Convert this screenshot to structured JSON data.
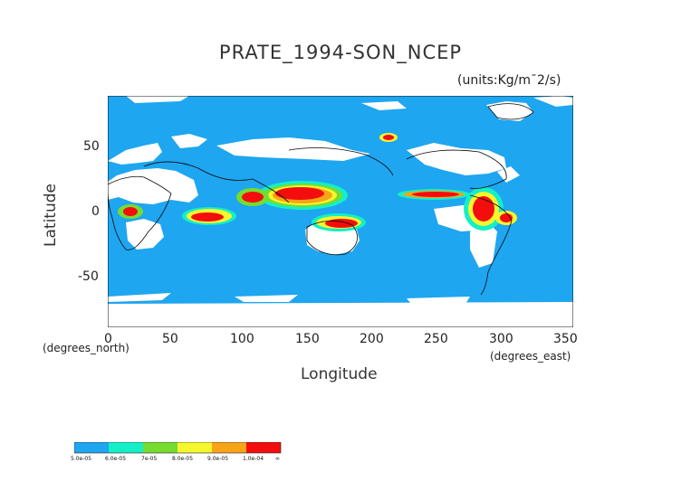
{
  "title": "PRATE_1994-SON_NCEP",
  "units": "(units:Kg/m¯2/s)",
  "axes": {
    "xlabel": "Longitude",
    "ylabel": "Latitude",
    "x_unit_note": "(degrees_east)",
    "y_unit_note": "(degrees_north)",
    "x_ticks": [
      "0",
      "50",
      "100",
      "150",
      "200",
      "250",
      "300",
      "350"
    ],
    "y_ticks": [
      "50",
      "0",
      "-50"
    ],
    "xlim": [
      0,
      360
    ],
    "ylim": [
      -90,
      90
    ]
  },
  "colorbar": {
    "labels": [
      "5.0e-05",
      "6.0e-05",
      "7e-05",
      "8.0e-05",
      "9.0e-05",
      "1.0e-04",
      "∞"
    ],
    "colors": [
      "#1ea6f0",
      "#14efc8",
      "#76dc30",
      "#f6f62c",
      "#f7a418",
      "#f40d0d"
    ]
  },
  "chart_data": {
    "type": "heatmap",
    "title": "PRATE_1994-SON_NCEP",
    "xlabel": "Longitude",
    "ylabel": "Latitude",
    "xlim": [
      0,
      360
    ],
    "ylim": [
      -90,
      90
    ],
    "x_ticks": [
      0,
      50,
      100,
      150,
      200,
      250,
      300,
      350
    ],
    "y_ticks": [
      50,
      0,
      -50
    ],
    "levels": [
      5e-05,
      6e-05,
      7e-05,
      8e-05,
      9e-05,
      0.0001
    ],
    "background_color": "#1ea6f0",
    "regions": [
      {
        "level": "red",
        "lon": [
          125,
          175
        ],
        "lat": [
          4,
          12
        ]
      },
      {
        "level": "red",
        "lon": [
          160,
          190
        ],
        "lat": [
          -10,
          -3
        ]
      },
      {
        "level": "red",
        "lon": [
          60,
          100
        ],
        "lat": [
          -6,
          0
        ]
      },
      {
        "level": "red",
        "lon": [
          235,
          275
        ],
        "lat": [
          5,
          10
        ]
      },
      {
        "level": "red",
        "lon": [
          280,
          310
        ],
        "lat": [
          -8,
          8
        ]
      },
      {
        "level": "red",
        "lon": [
          215,
          230
        ],
        "lat": [
          55,
          60
        ]
      },
      {
        "level": "red",
        "lon": [
          12,
          30
        ],
        "lat": [
          -5,
          3
        ]
      }
    ]
  }
}
